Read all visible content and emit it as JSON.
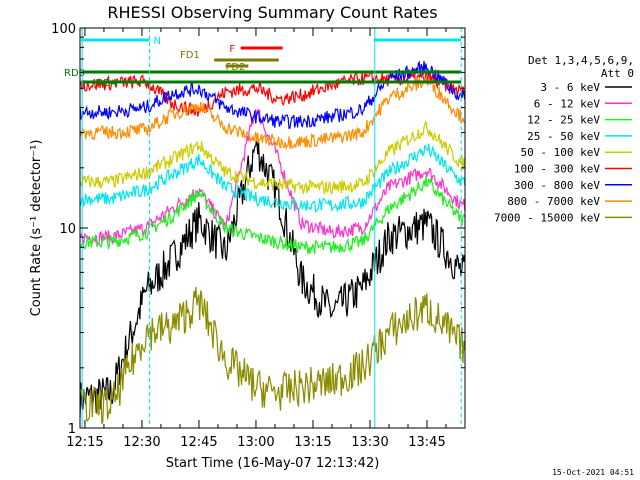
{
  "chart_data": {
    "type": "line",
    "title": "RHESSI Observing Summary Count Rates",
    "xlabel": "Start Time (16-May-07 12:13:42)",
    "ylabel": "Count Rate (s⁻¹ detector⁻¹)",
    "y_scale": "log",
    "ylim": [
      1,
      100
    ],
    "xlim_minutes_after_12:00": [
      13.7,
      115
    ],
    "x_tick_labels": [
      "12:15",
      "12:30",
      "12:45",
      "13:00",
      "13:15",
      "13:30",
      "13:45"
    ],
    "x_tick_minutes": [
      15,
      30,
      45,
      60,
      75,
      90,
      105
    ],
    "y_tick_labels": [
      "1",
      "10",
      "100"
    ],
    "y_tick_values": [
      1,
      10,
      100
    ],
    "legend_header": [
      "Det 1,3,4,5,6,9,",
      "Att 0"
    ],
    "legend_placement": "right",
    "timestamp": "15-Oct-2021 04:51",
    "flags": [
      {
        "label": "N",
        "color": "#00e5ee"
      },
      {
        "label": "RD0",
        "color": "#007a00"
      },
      {
        "label": "RD4",
        "color": "#007a00"
      },
      {
        "label": "FD1",
        "color": "#7a7a00"
      },
      {
        "label": "FD2",
        "color": "#7a7a00"
      },
      {
        "label": "F",
        "color": "#ff0000"
      }
    ],
    "series": [
      {
        "name": "3 - 6 keV",
        "color": "#000000",
        "values": [
          1.4,
          1.5,
          4.8,
          7.0,
          11.0,
          7.5,
          26.0,
          14.0,
          5.5,
          3.8,
          5.0,
          9.0,
          10.5,
          6.0
        ]
      },
      {
        "name": "6 - 12 keV",
        "color": "#ff33cc",
        "values": [
          9.0,
          9.0,
          10.0,
          12.5,
          15.5,
          10.0,
          40.0,
          22.0,
          10.5,
          9.5,
          10.0,
          16.0,
          19.5,
          13.0
        ]
      },
      {
        "name": "12 - 25 keV",
        "color": "#22ee22",
        "values": [
          8.5,
          8.5,
          9.5,
          11.5,
          15.0,
          10.0,
          9.0,
          8.5,
          8.0,
          8.0,
          8.5,
          12.5,
          17.0,
          11.0
        ]
      },
      {
        "name": "25 - 50 keV",
        "color": "#00e5ee",
        "values": [
          14.0,
          14.0,
          15.5,
          18.5,
          22.0,
          16.0,
          14.0,
          13.5,
          13.0,
          13.0,
          13.5,
          19.0,
          25.0,
          17.0
        ]
      },
      {
        "name": "50 - 100 keV",
        "color": "#cccc00",
        "values": [
          17.0,
          17.0,
          19.0,
          22.0,
          26.0,
          19.0,
          17.0,
          16.5,
          16.0,
          16.0,
          16.5,
          24.0,
          32.0,
          21.0
        ]
      },
      {
        "name": "100 - 300 keV",
        "color": "#ff0000",
        "values": [
          52.0,
          53.0,
          54.0,
          42.0,
          38.0,
          48.0,
          50.0,
          44.0,
          46.0,
          52.0,
          56.0,
          55.0,
          56.0,
          48.0
        ]
      },
      {
        "name": "300 - 800 keV",
        "color": "#0000ff",
        "values": [
          38.0,
          38.0,
          40.0,
          47.0,
          50.0,
          40.0,
          36.0,
          34.0,
          34.0,
          36.0,
          39.0,
          56.0,
          64.0,
          45.0
        ]
      },
      {
        "name": "800 - 7000 keV",
        "color": "#ff8c00",
        "values": [
          30.0,
          30.0,
          31.0,
          37.0,
          41.0,
          32.0,
          28.0,
          27.0,
          27.0,
          28.0,
          30.0,
          45.0,
          55.0,
          36.0
        ]
      },
      {
        "name": "7000 - 15000 keV",
        "color": "#8b8b00",
        "values": [
          1.3,
          1.3,
          3.0,
          3.2,
          4.3,
          2.2,
          1.6,
          1.5,
          1.6,
          1.7,
          2.0,
          3.0,
          4.0,
          2.6
        ]
      }
    ],
    "x": [
      14,
      22,
      31,
      38,
      45,
      52,
      60,
      66,
      72,
      80,
      88,
      95,
      105,
      114
    ]
  }
}
